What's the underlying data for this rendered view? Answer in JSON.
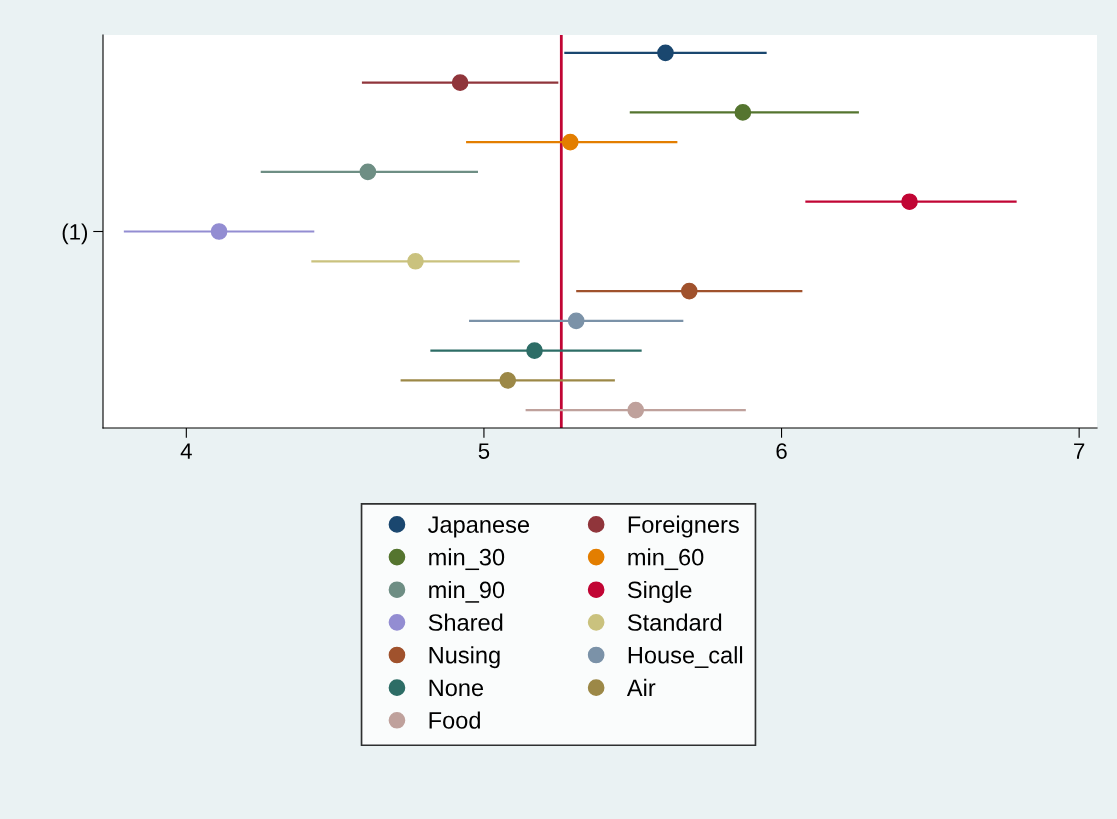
{
  "chart_data": {
    "type": "scatter",
    "orientation": "horizontal",
    "categories": [
      null,
      null,
      null,
      null,
      null,
      null,
      "(1)",
      null,
      null,
      null,
      null,
      null,
      null
    ],
    "xlim": [
      3.72,
      7.06
    ],
    "xticks": [
      4,
      5,
      6,
      7
    ],
    "marker": "circle",
    "grid": false,
    "legend": "bottom",
    "ref_lines": [
      {
        "axis": "x",
        "value": 5.26,
        "color": "#c10534"
      }
    ],
    "series": [
      {
        "name": "Japanese",
        "color": "#1a476f",
        "values": [
          5.61,
          null,
          null,
          null,
          null,
          null,
          null,
          null,
          null,
          null,
          null,
          null,
          null
        ],
        "errors": [
          [
            5.27,
            5.95
          ],
          null,
          null,
          null,
          null,
          null,
          null,
          null,
          null,
          null,
          null,
          null,
          null
        ]
      },
      {
        "name": "Foreigners",
        "color": "#90353b",
        "values": [
          null,
          4.92,
          null,
          null,
          null,
          null,
          null,
          null,
          null,
          null,
          null,
          null,
          null
        ],
        "errors": [
          null,
          [
            4.59,
            5.25
          ],
          null,
          null,
          null,
          null,
          null,
          null,
          null,
          null,
          null,
          null,
          null
        ]
      },
      {
        "name": "min_30",
        "color": "#55752f",
        "values": [
          null,
          null,
          5.87,
          null,
          null,
          null,
          null,
          null,
          null,
          null,
          null,
          null,
          null
        ],
        "errors": [
          null,
          null,
          [
            5.49,
            6.26
          ],
          null,
          null,
          null,
          null,
          null,
          null,
          null,
          null,
          null,
          null
        ]
      },
      {
        "name": "min_60",
        "color": "#e37e00",
        "values": [
          null,
          null,
          null,
          5.29,
          null,
          null,
          null,
          null,
          null,
          null,
          null,
          null,
          null
        ],
        "errors": [
          null,
          null,
          null,
          [
            4.94,
            5.65
          ],
          null,
          null,
          null,
          null,
          null,
          null,
          null,
          null,
          null
        ]
      },
      {
        "name": "min_90",
        "color": "#6e8e84",
        "values": [
          null,
          null,
          null,
          null,
          4.61,
          null,
          null,
          null,
          null,
          null,
          null,
          null,
          null
        ],
        "errors": [
          null,
          null,
          null,
          null,
          [
            4.25,
            4.98
          ],
          null,
          null,
          null,
          null,
          null,
          null,
          null,
          null
        ]
      },
      {
        "name": "Single",
        "color": "#c10534",
        "values": [
          null,
          null,
          null,
          null,
          null,
          6.43,
          null,
          null,
          null,
          null,
          null,
          null,
          null
        ],
        "errors": [
          null,
          null,
          null,
          null,
          null,
          [
            6.08,
            6.79
          ],
          null,
          null,
          null,
          null,
          null,
          null,
          null
        ]
      },
      {
        "name": "Shared",
        "color": "#938dd2",
        "values": [
          null,
          null,
          null,
          null,
          null,
          null,
          4.11,
          null,
          null,
          null,
          null,
          null,
          null
        ],
        "errors": [
          null,
          null,
          null,
          null,
          null,
          null,
          [
            3.79,
            4.43
          ],
          null,
          null,
          null,
          null,
          null,
          null
        ]
      },
      {
        "name": "Standard",
        "color": "#cac27e",
        "values": [
          null,
          null,
          null,
          null,
          null,
          null,
          null,
          4.77,
          null,
          null,
          null,
          null,
          null
        ],
        "errors": [
          null,
          null,
          null,
          null,
          null,
          null,
          null,
          [
            4.42,
            5.12
          ],
          null,
          null,
          null,
          null,
          null
        ]
      },
      {
        "name": "Nusing",
        "color": "#a0522d",
        "values": [
          null,
          null,
          null,
          null,
          null,
          null,
          null,
          null,
          5.69,
          null,
          null,
          null,
          null
        ],
        "errors": [
          null,
          null,
          null,
          null,
          null,
          null,
          null,
          null,
          [
            5.31,
            6.07
          ],
          null,
          null,
          null,
          null
        ]
      },
      {
        "name": "House_call",
        "color": "#7b92a8",
        "values": [
          null,
          null,
          null,
          null,
          null,
          null,
          null,
          null,
          null,
          5.31,
          null,
          null,
          null
        ],
        "errors": [
          null,
          null,
          null,
          null,
          null,
          null,
          null,
          null,
          null,
          [
            4.95,
            5.67
          ],
          null,
          null,
          null
        ]
      },
      {
        "name": "None",
        "color": "#2d6d66",
        "values": [
          null,
          null,
          null,
          null,
          null,
          null,
          null,
          null,
          null,
          null,
          5.17,
          null,
          null
        ],
        "errors": [
          null,
          null,
          null,
          null,
          null,
          null,
          null,
          null,
          null,
          null,
          [
            4.82,
            5.53
          ],
          null,
          null
        ]
      },
      {
        "name": "Air",
        "color": "#9c8847",
        "values": [
          null,
          null,
          null,
          null,
          null,
          null,
          null,
          null,
          null,
          null,
          null,
          5.08,
          null
        ],
        "errors": [
          null,
          null,
          null,
          null,
          null,
          null,
          null,
          null,
          null,
          null,
          null,
          [
            4.72,
            5.44
          ],
          null
        ]
      },
      {
        "name": "Food",
        "color": "#bfa19c",
        "values": [
          null,
          null,
          null,
          null,
          null,
          null,
          null,
          null,
          null,
          null,
          null,
          null,
          5.51
        ],
        "errors": [
          null,
          null,
          null,
          null,
          null,
          null,
          null,
          null,
          null,
          null,
          null,
          null,
          [
            5.14,
            5.88
          ]
        ]
      }
    ]
  }
}
